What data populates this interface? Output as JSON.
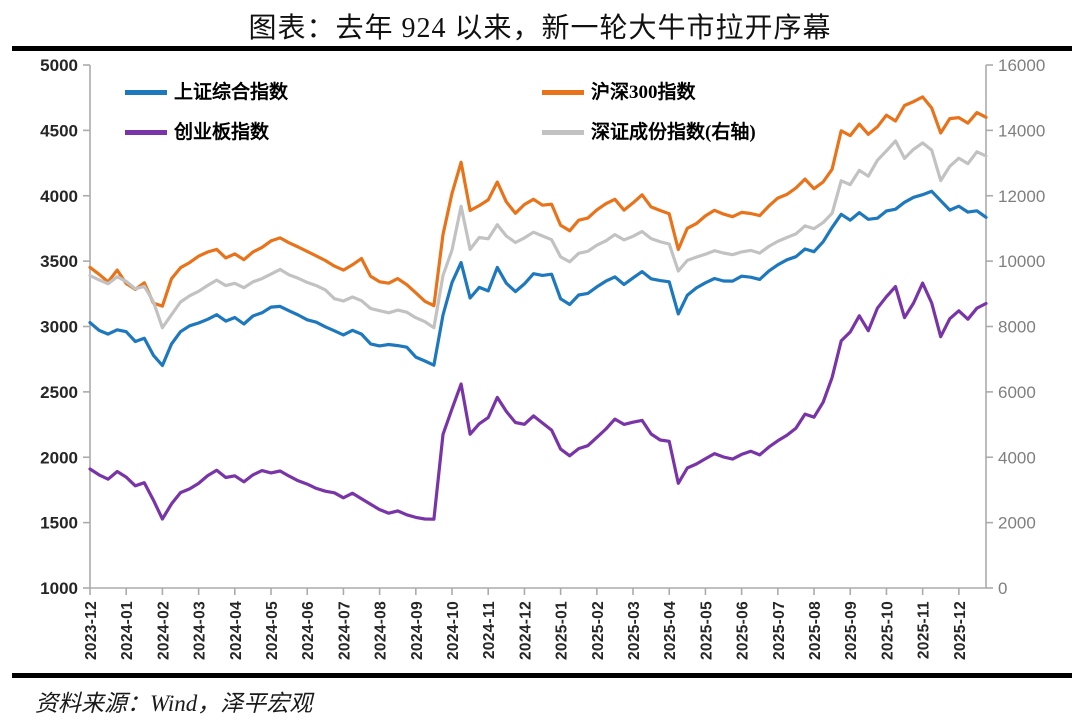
{
  "title": "图表：去年 924 以来，新一轮大牛市拉开序幕",
  "source": "资料来源：Wind，泽平宏观",
  "legend": {
    "items": [
      {
        "label": "上证综合指数",
        "color": "#1E78BE"
      },
      {
        "label": "沪深300指数",
        "color": "#E8731A"
      },
      {
        "label": "创业板指数",
        "color": "#7935A8"
      },
      {
        "label": "深证成份指数(右轴)",
        "color": "#C2C2C2"
      }
    ]
  },
  "chart_data": {
    "type": "line",
    "x_start": "2023-12",
    "x_end": "2025-12",
    "sampling": "weekly, 4 points per month",
    "x_monthly_labels": [
      "2023-12",
      "2024-01",
      "2024-02",
      "2024-03",
      "2024-04",
      "2024-05",
      "2024-06",
      "2024-07",
      "2024-08",
      "2024-09",
      "2024-10",
      "2024-11",
      "2024-12",
      "2025-01",
      "2025-02",
      "2025-03",
      "2025-04",
      "2025-05",
      "2025-06",
      "2025-07",
      "2025-08",
      "2025-09",
      "2025-10",
      "2025-11",
      "2025-12"
    ],
    "left_axis": {
      "min": 1000,
      "max": 5000,
      "ticks": [
        5000,
        4500,
        4000,
        3500,
        3000,
        2500,
        2000,
        1500,
        1000
      ],
      "label_color": "#262626"
    },
    "right_axis": {
      "min": 0,
      "max": 16000,
      "ticks": [
        16000,
        14000,
        12000,
        10000,
        8000,
        6000,
        4000,
        2000,
        0
      ],
      "label_color": "#7f7f7f"
    },
    "grid": false,
    "legend_position": "top-inside",
    "series": [
      {
        "name": "上证综合指数",
        "axis": "left",
        "color": "#1E78BE",
        "values": [
          3030,
          2970,
          2942,
          2975,
          2960,
          2885,
          2910,
          2780,
          2702,
          2866,
          2960,
          3005,
          3027,
          3055,
          3090,
          3041,
          3069,
          3019,
          3080,
          3105,
          3148,
          3154,
          3120,
          3088,
          3051,
          3033,
          2998,
          2967,
          2936,
          2971,
          2942,
          2867,
          2852,
          2862,
          2854,
          2842,
          2766,
          2736,
          2704,
          3088,
          3336,
          3489,
          3218,
          3299,
          3272,
          3452,
          3331,
          3267,
          3326,
          3404,
          3391,
          3400,
          3212,
          3168,
          3241,
          3253,
          3303,
          3347,
          3379,
          3321,
          3372,
          3420,
          3365,
          3351,
          3342,
          3096,
          3239,
          3295,
          3334,
          3367,
          3348,
          3347,
          3385,
          3377,
          3360,
          3424,
          3472,
          3510,
          3534,
          3593,
          3572,
          3648,
          3758,
          3858,
          3813,
          3871,
          3820,
          3828,
          3883,
          3897,
          3950,
          3988,
          4008,
          4034,
          3962,
          3890,
          3920,
          3875,
          3885,
          3835
        ]
      },
      {
        "name": "沪深300指数",
        "axis": "left",
        "color": "#E8731A",
        "values": [
          3452,
          3399,
          3342,
          3431,
          3329,
          3284,
          3334,
          3179,
          3156,
          3365,
          3450,
          3489,
          3538,
          3570,
          3590,
          3525,
          3555,
          3511,
          3570,
          3605,
          3655,
          3678,
          3640,
          3608,
          3574,
          3540,
          3505,
          3462,
          3431,
          3472,
          3520,
          3384,
          3342,
          3331,
          3366,
          3320,
          3258,
          3193,
          3159,
          3704,
          4018,
          4256,
          3887,
          3925,
          3968,
          4105,
          3954,
          3866,
          3933,
          3973,
          3928,
          3935,
          3775,
          3732,
          3813,
          3829,
          3892,
          3939,
          3973,
          3890,
          3945,
          4007,
          3915,
          3887,
          3862,
          3589,
          3751,
          3787,
          3846,
          3889,
          3860,
          3840,
          3873,
          3864,
          3848,
          3921,
          3982,
          4010,
          4059,
          4127,
          4054,
          4105,
          4202,
          4497,
          4460,
          4548,
          4470,
          4527,
          4616,
          4572,
          4690,
          4720,
          4756,
          4671,
          4480,
          4590,
          4598,
          4556,
          4636,
          4600
        ]
      },
      {
        "name": "创业板指数",
        "axis": "left",
        "color": "#7935A8",
        "values": [
          1910,
          1865,
          1832,
          1891,
          1848,
          1782,
          1805,
          1672,
          1528,
          1643,
          1730,
          1758,
          1800,
          1860,
          1900,
          1845,
          1858,
          1812,
          1865,
          1898,
          1880,
          1895,
          1856,
          1820,
          1795,
          1762,
          1740,
          1728,
          1690,
          1725,
          1683,
          1640,
          1600,
          1572,
          1590,
          1560,
          1540,
          1528,
          1526,
          2175,
          2370,
          2560,
          2176,
          2256,
          2303,
          2458,
          2351,
          2266,
          2252,
          2316,
          2262,
          2208,
          2062,
          2011,
          2066,
          2088,
          2152,
          2216,
          2292,
          2251,
          2268,
          2282,
          2178,
          2132,
          2122,
          1801,
          1918,
          1948,
          1988,
          2028,
          2002,
          1986,
          2022,
          2046,
          2018,
          2078,
          2126,
          2168,
          2222,
          2330,
          2306,
          2420,
          2610,
          2890,
          2958,
          3082,
          2968,
          3140,
          3228,
          3305,
          3068,
          3180,
          3332,
          3180,
          2922,
          3060,
          3120,
          3056,
          3140,
          3176
        ]
      },
      {
        "name": "深证成份指数(右轴)",
        "axis": "right",
        "color": "#C2C2C2",
        "values": [
          9556,
          9425,
          9306,
          9524,
          9380,
          9150,
          9230,
          8760,
          7964,
          8360,
          8750,
          8940,
          9078,
          9256,
          9420,
          9252,
          9322,
          9186,
          9364,
          9466,
          9604,
          9748,
          9580,
          9476,
          9350,
          9252,
          9120,
          8850,
          8780,
          8902,
          8788,
          8552,
          8484,
          8420,
          8502,
          8436,
          8268,
          8148,
          7962,
          9560,
          10336,
          11676,
          10360,
          10724,
          10684,
          11115,
          10770,
          10570,
          10712,
          10884,
          10768,
          10656,
          10128,
          9980,
          10238,
          10300,
          10488,
          10622,
          10810,
          10650,
          10758,
          10906,
          10688,
          10590,
          10524,
          9698,
          10022,
          10122,
          10212,
          10318,
          10248,
          10198,
          10282,
          10328,
          10246,
          10452,
          10604,
          10722,
          10832,
          11078,
          10992,
          11178,
          11462,
          12458,
          12342,
          12780,
          12598,
          13084,
          13372,
          13678,
          13142,
          13420,
          13616,
          13398,
          12462,
          12902,
          13148,
          12984,
          13346,
          13218
        ]
      }
    ]
  }
}
